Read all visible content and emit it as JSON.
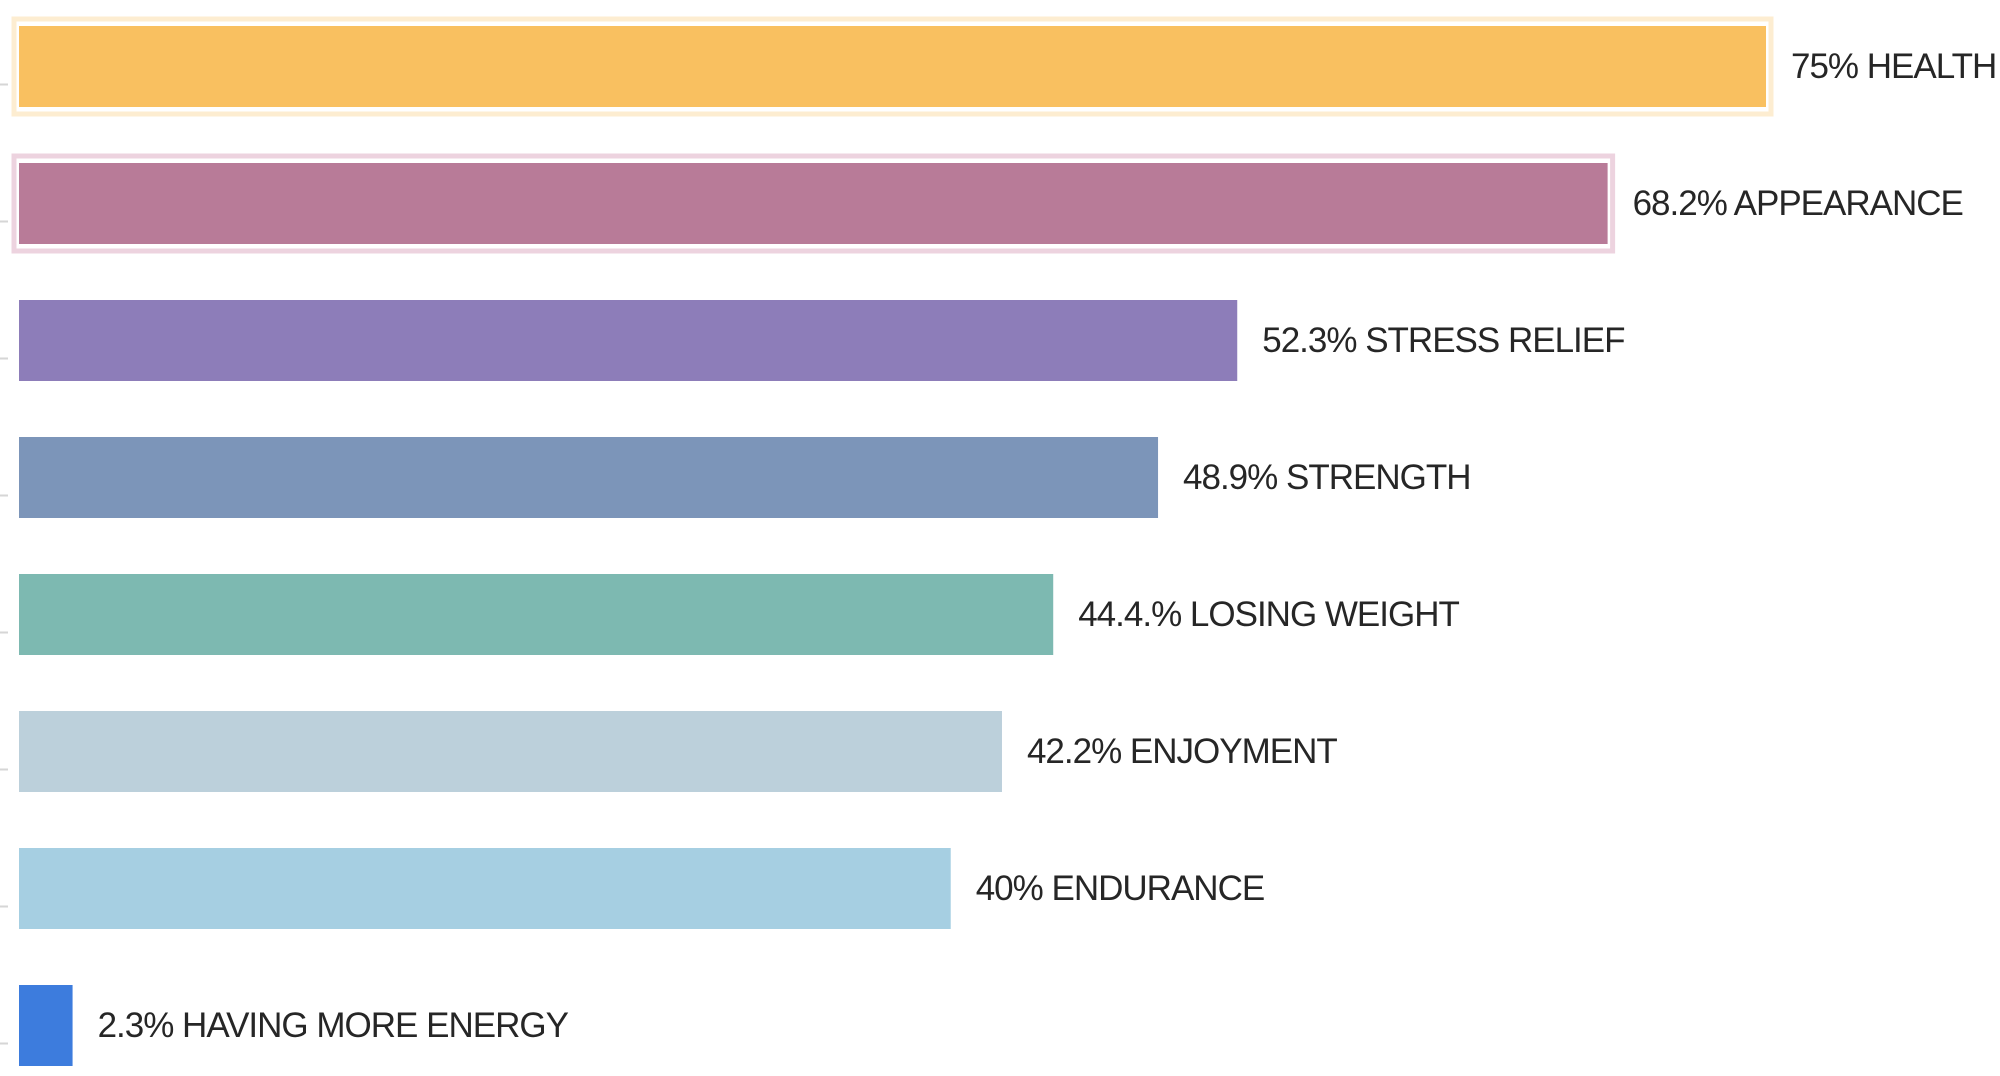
{
  "chart_data": {
    "type": "bar",
    "orientation": "horizontal",
    "title": "",
    "xlabel": "",
    "ylabel": "",
    "xlim": [
      0,
      75
    ],
    "grid": false,
    "legend": "none",
    "categories": [
      "HEALTH",
      "APPEARANCE",
      "STRESS RELIEF",
      "STRENGTH",
      "LOSING WEIGHT",
      "ENJOYMENT",
      "ENDURANCE",
      "HAVING MORE ENERGY"
    ],
    "values": [
      75,
      68.2,
      52.3,
      48.9,
      44.4,
      42.2,
      40,
      2.3
    ],
    "labels": [
      "75% HEALTH",
      "68.2% APPEARANCE",
      "52.3% STRESS RELIEF",
      "48.9% STRENGTH",
      "44.4.% LOSING WEIGHT",
      "42.2% ENJOYMENT",
      "40% ENDURANCE",
      "2.3%  HAVING MORE ENERGY"
    ],
    "colors": [
      "#F9C060",
      "#B87B98",
      "#8D7DB9",
      "#7C95B9",
      "#7DB9B1",
      "#BCD0DB",
      "#A6CFE2",
      "#3D7CDD"
    ],
    "highlighted": [
      true,
      true,
      false,
      false,
      false,
      false,
      false,
      false
    ],
    "highlight_colors": [
      "#FDEDD1",
      "#EDD3DF"
    ]
  }
}
